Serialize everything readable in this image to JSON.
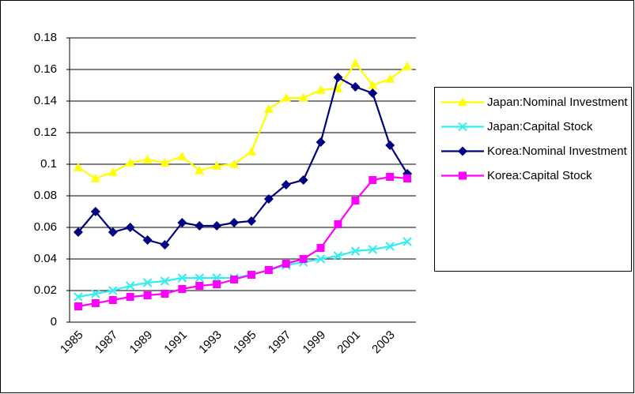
{
  "chart_data": {
    "type": "line",
    "categories": [
      "1985",
      null,
      "1987",
      null,
      "1989",
      null,
      "1991",
      null,
      "1993",
      null,
      "1995",
      null,
      "1997",
      null,
      "1999",
      null,
      "2001",
      null,
      "2003",
      null
    ],
    "series": [
      {
        "name": "Japan:Nominal Investment",
        "color": "#ffff00",
        "marker": "triangle",
        "values": [
          0.098,
          0.091,
          0.095,
          0.101,
          0.103,
          0.101,
          0.105,
          0.096,
          0.099,
          0.1,
          0.108,
          0.135,
          0.142,
          0.142,
          0.147,
          0.148,
          0.164,
          0.15,
          0.154,
          0.162
        ]
      },
      {
        "name": "Japan:Capital Stock",
        "color": "#33eeee",
        "marker": "x",
        "values": [
          0.016,
          0.018,
          0.02,
          0.023,
          0.025,
          0.026,
          0.028,
          0.028,
          0.028,
          0.028,
          0.03,
          0.033,
          0.036,
          0.038,
          0.04,
          0.042,
          0.045,
          0.046,
          0.048,
          0.051
        ]
      },
      {
        "name": "Korea:Nominal Investment",
        "color": "#000080",
        "marker": "diamond",
        "values": [
          0.057,
          0.07,
          0.057,
          0.06,
          0.052,
          0.049,
          0.063,
          0.061,
          0.061,
          0.063,
          0.064,
          0.078,
          0.087,
          0.09,
          0.114,
          0.155,
          0.149,
          0.145,
          0.112,
          0.094
        ]
      },
      {
        "name": "Korea:Capital Stock",
        "color": "#ff00ff",
        "marker": "square",
        "values": [
          0.01,
          0.012,
          0.014,
          0.016,
          0.017,
          0.018,
          0.021,
          0.023,
          0.024,
          0.027,
          0.03,
          0.033,
          0.037,
          0.04,
          0.047,
          0.062,
          0.077,
          0.09,
          0.092,
          0.091
        ]
      }
    ],
    "ylim": [
      0,
      0.18
    ],
    "yticks": [
      0,
      0.02,
      0.04,
      0.06,
      0.08,
      0.1,
      0.12,
      0.14,
      0.16,
      0.18
    ],
    "grid": true,
    "legend": "right"
  }
}
